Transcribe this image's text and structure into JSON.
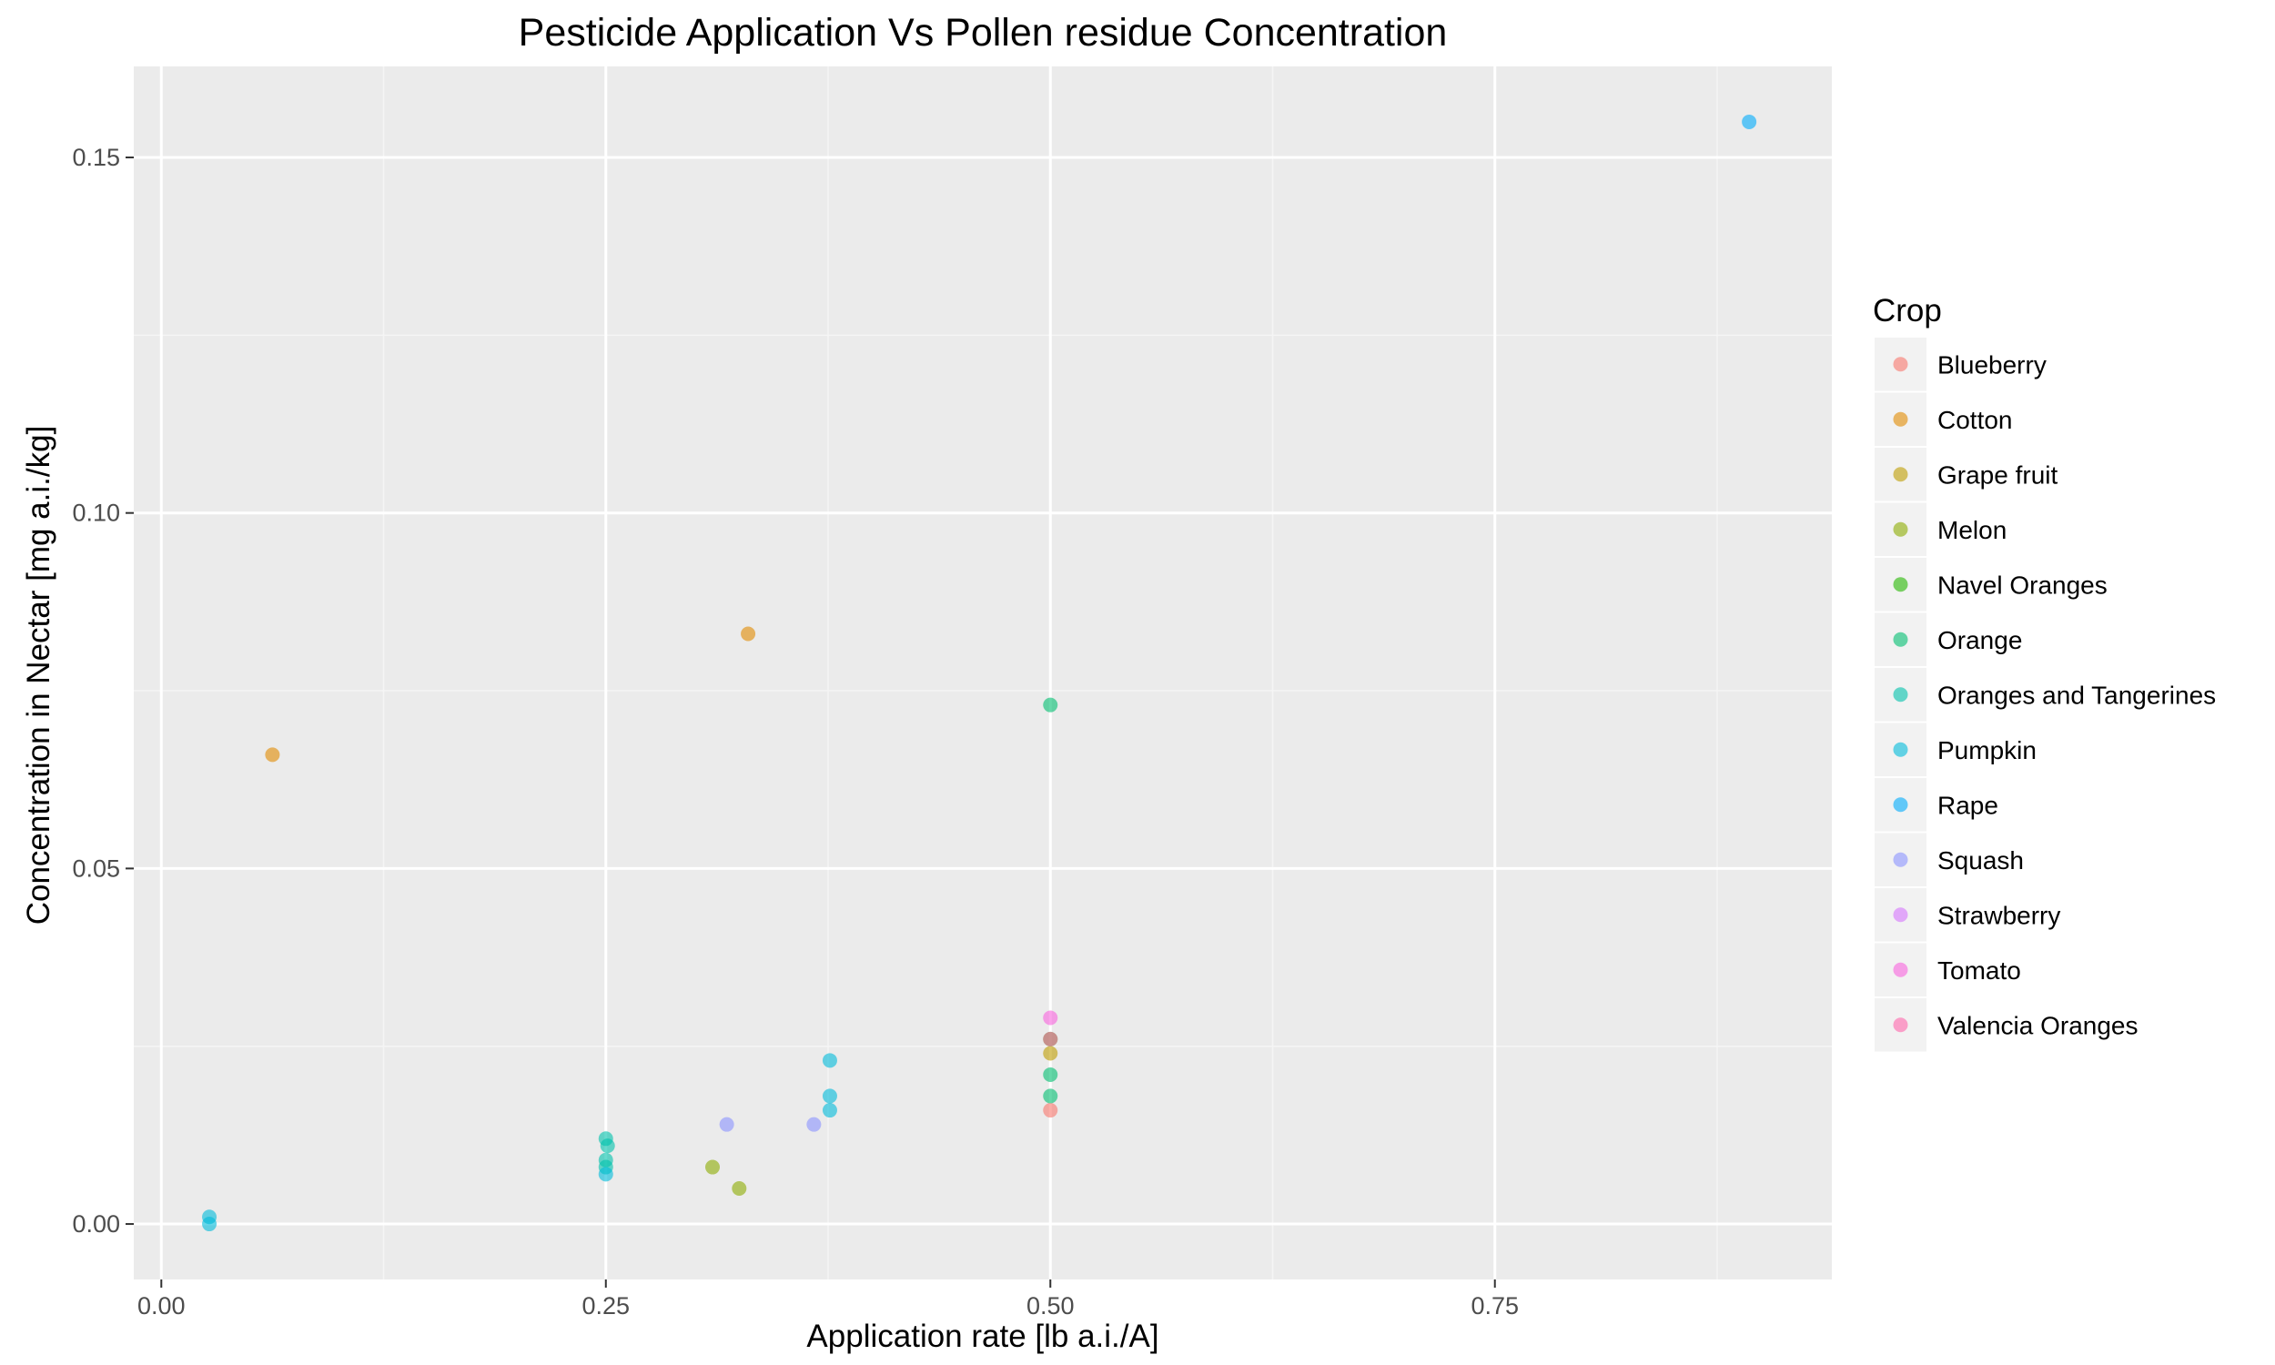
{
  "chart_data": {
    "type": "scatter",
    "title": "Pesticide Application Vs Pollen residue Concentration",
    "xlabel": "Application rate [lb a.i./A]",
    "ylabel": "Concentration in Nectar [mg a.i./kg]",
    "xlim": [
      -0.0155,
      0.9395
    ],
    "ylim": [
      -0.0078,
      0.1628
    ],
    "x_ticks": [
      0.0,
      0.25,
      0.5,
      0.75
    ],
    "x_tick_labels": [
      "0.00",
      "0.25",
      "0.50",
      "0.75"
    ],
    "y_ticks": [
      0.0,
      0.05,
      0.1,
      0.15
    ],
    "y_tick_labels": [
      "0.00",
      "0.05",
      "0.10",
      "0.15"
    ],
    "grid": true,
    "background": "#ebebeb",
    "legend": {
      "title": "Crop",
      "position": "right"
    },
    "series": [
      {
        "name": "Blueberry",
        "color": "#F8766D",
        "points": [
          [
            0.5,
            0.016
          ]
        ]
      },
      {
        "name": "Cotton",
        "color": "#E18A00",
        "points": [
          [
            0.0625,
            0.066
          ],
          [
            0.33,
            0.083
          ]
        ]
      },
      {
        "name": "Grape fruit",
        "color": "#BE9C00",
        "points": [
          [
            0.5,
            0.024
          ]
        ]
      },
      {
        "name": "Melon",
        "color": "#8CAB00",
        "points": [
          [
            0.31,
            0.008
          ],
          [
            0.325,
            0.005
          ]
        ]
      },
      {
        "name": "Navel Oranges",
        "color": "#24B700",
        "points": [
          [
            0.5,
            0.026
          ]
        ]
      },
      {
        "name": "Orange",
        "color": "#00BE70",
        "points": [
          [
            0.5,
            0.073
          ],
          [
            0.5,
            0.021
          ],
          [
            0.5,
            0.018
          ]
        ]
      },
      {
        "name": "Oranges and Tangerines",
        "color": "#00C1AB",
        "points": [
          [
            0.25,
            0.012
          ],
          [
            0.251,
            0.011
          ],
          [
            0.25,
            0.009
          ],
          [
            0.25,
            0.008
          ]
        ]
      },
      {
        "name": "Pumpkin",
        "color": "#00BBDA",
        "points": [
          [
            0.027,
            0.001
          ],
          [
            0.027,
            0.0
          ],
          [
            0.25,
            0.007
          ],
          [
            0.376,
            0.023
          ],
          [
            0.376,
            0.018
          ],
          [
            0.376,
            0.016
          ]
        ]
      },
      {
        "name": "Rape",
        "color": "#00ACFC",
        "points": [
          [
            0.893,
            0.155
          ]
        ]
      },
      {
        "name": "Squash",
        "color": "#8B93FF",
        "points": [
          [
            0.318,
            0.014
          ],
          [
            0.367,
            0.014
          ]
        ]
      },
      {
        "name": "Strawberry",
        "color": "#D575FE",
        "points": []
      },
      {
        "name": "Tomato",
        "color": "#F962DD",
        "points": [
          [
            0.5,
            0.029
          ]
        ]
      },
      {
        "name": "Valencia Oranges",
        "color": "#FF65AC",
        "points": [
          [
            0.5,
            0.026
          ]
        ]
      }
    ]
  }
}
